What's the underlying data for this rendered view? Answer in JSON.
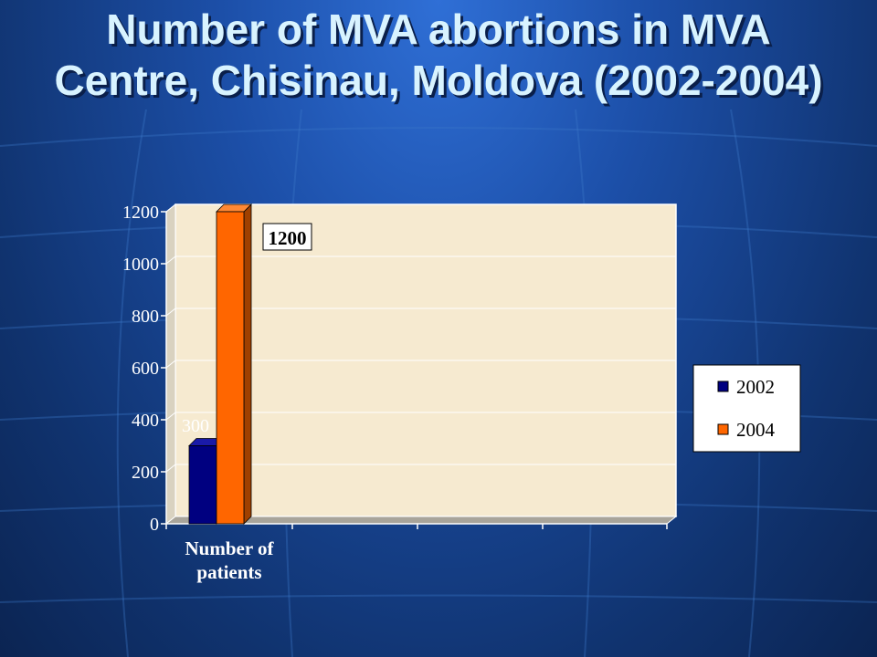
{
  "slide": {
    "title": "Number of MVA abortions in MVA Centre, Chisinau, Moldova (2002-2004)"
  },
  "colors": {
    "series_2002": "#000080",
    "series_2004": "#ff6600",
    "plot_bg": "#f6ead0",
    "background": "#1c4fa8"
  },
  "chart_data": {
    "type": "bar",
    "categories": [
      "Number of patients"
    ],
    "series": [
      {
        "name": "2002",
        "values": [
          300
        ]
      },
      {
        "name": "2004",
        "values": [
          1200
        ]
      }
    ],
    "data_labels": [
      "300",
      "1200"
    ],
    "yticks": [
      "0",
      "200",
      "400",
      "600",
      "800",
      "1000",
      "1200"
    ],
    "ylim": [
      0,
      1200
    ],
    "grid": true,
    "legend": "right",
    "title": "",
    "xlabel": "",
    "ylabel": ""
  }
}
